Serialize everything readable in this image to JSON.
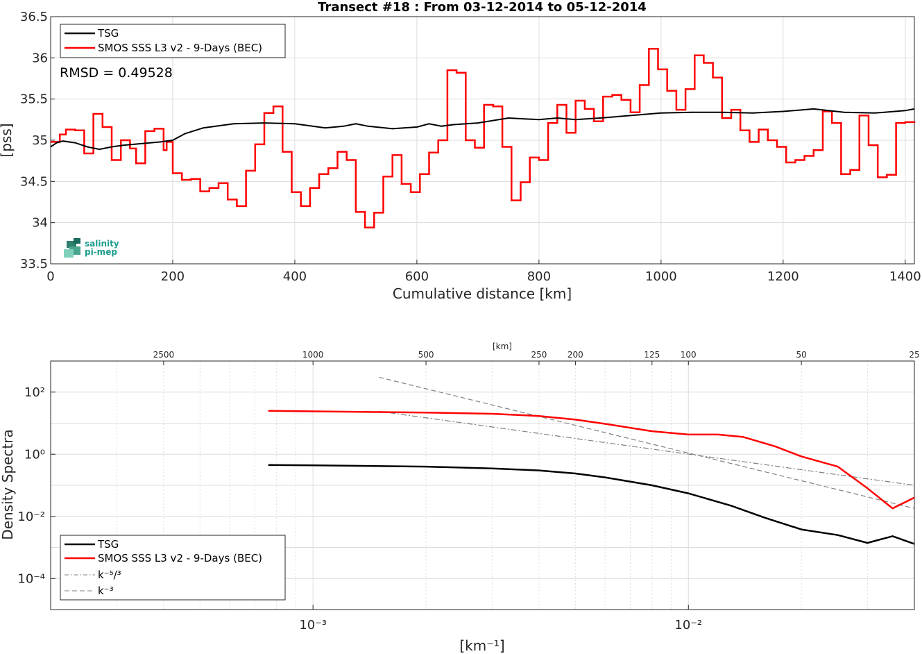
{
  "chart_data": [
    {
      "type": "line",
      "title": "Transect #18 : From 03-12-2014 to 05-12-2014",
      "xlabel": "Cumulative distance [km]",
      "ylabel": "[pss]",
      "xlim": [
        0,
        1415
      ],
      "ylim": [
        33.5,
        36.5
      ],
      "x_ticks": [
        "0",
        "200",
        "400",
        "600",
        "800",
        "1000",
        "1200",
        "1400"
      ],
      "y_ticks": [
        "33.5",
        "34",
        "34.5",
        "35",
        "35.5",
        "36",
        "36.5"
      ],
      "grid": true,
      "legend_position": "top-left",
      "annotation": "RMSD = 0.49528",
      "logo_text": [
        "salinity",
        "pi-mep"
      ],
      "series": [
        {
          "name": "TSG",
          "color": "#000000",
          "x": [
            0,
            10,
            20,
            40,
            60,
            80,
            100,
            120,
            150,
            180,
            200,
            220,
            250,
            300,
            350,
            400,
            450,
            480,
            500,
            520,
            560,
            600,
            620,
            640,
            660,
            700,
            750,
            800,
            830,
            860,
            900,
            950,
            1000,
            1050,
            1100,
            1150,
            1200,
            1250,
            1300,
            1350,
            1400,
            1415
          ],
          "values": [
            34.92,
            34.97,
            34.99,
            34.97,
            34.92,
            34.89,
            34.92,
            34.94,
            34.96,
            34.98,
            35.0,
            35.08,
            35.15,
            35.2,
            35.21,
            35.2,
            35.15,
            35.17,
            35.2,
            35.17,
            35.14,
            35.16,
            35.2,
            35.17,
            35.19,
            35.21,
            35.27,
            35.25,
            35.27,
            35.25,
            35.27,
            35.3,
            35.33,
            35.34,
            35.34,
            35.33,
            35.35,
            35.38,
            35.34,
            35.33,
            35.36,
            35.38
          ]
        },
        {
          "name": "SMOS SSS L3 v2 - 9-Days (BEC)",
          "color": "#ff0000",
          "x": [
            0,
            15,
            25,
            40,
            55,
            70,
            85,
            100,
            115,
            130,
            140,
            155,
            170,
            185,
            190,
            200,
            215,
            230,
            245,
            260,
            275,
            290,
            305,
            320,
            335,
            350,
            365,
            380,
            395,
            410,
            425,
            440,
            455,
            470,
            485,
            500,
            515,
            530,
            545,
            560,
            575,
            590,
            605,
            620,
            635,
            650,
            665,
            680,
            695,
            710,
            725,
            740,
            755,
            770,
            785,
            800,
            815,
            830,
            845,
            860,
            875,
            890,
            905,
            920,
            935,
            950,
            965,
            980,
            995,
            1010,
            1025,
            1040,
            1055,
            1070,
            1085,
            1100,
            1115,
            1130,
            1145,
            1160,
            1175,
            1190,
            1205,
            1220,
            1235,
            1250,
            1265,
            1280,
            1295,
            1310,
            1325,
            1340,
            1355,
            1370,
            1385,
            1400,
            1415
          ],
          "values": [
            34.98,
            35.07,
            35.13,
            35.12,
            34.84,
            35.32,
            35.16,
            34.76,
            35.0,
            34.9,
            34.72,
            35.11,
            35.14,
            34.88,
            34.98,
            34.6,
            34.52,
            34.53,
            34.38,
            34.42,
            34.48,
            34.28,
            34.2,
            34.63,
            34.95,
            35.33,
            35.41,
            34.86,
            34.37,
            34.2,
            34.42,
            34.59,
            34.66,
            34.86,
            34.76,
            34.13,
            33.94,
            34.12,
            34.56,
            34.82,
            34.47,
            34.37,
            34.59,
            34.85,
            35.0,
            35.85,
            35.82,
            35.0,
            34.91,
            35.43,
            35.41,
            34.92,
            34.27,
            34.49,
            34.79,
            34.76,
            35.21,
            35.43,
            35.09,
            35.48,
            35.38,
            35.23,
            35.53,
            35.55,
            35.49,
            35.34,
            35.67,
            36.11,
            35.86,
            35.6,
            35.37,
            35.62,
            36.03,
            35.94,
            35.76,
            35.27,
            35.37,
            35.12,
            34.98,
            35.13,
            35.0,
            34.92,
            34.73,
            34.76,
            34.81,
            34.88,
            35.35,
            35.21,
            34.59,
            34.64,
            35.3,
            34.94,
            34.55,
            34.58,
            35.21,
            35.22,
            35.21
          ]
        }
      ]
    },
    {
      "type": "line",
      "title": "",
      "xlabel": "[km⁻¹]",
      "ylabel": "Density Spectra",
      "x_scale": "log",
      "y_scale": "log",
      "xlim": [
        0.0002,
        0.04
      ],
      "ylim": [
        1e-05,
        1000
      ],
      "x_ticks": [
        "10⁻³",
        "10⁻²"
      ],
      "y_ticks": [
        "10²",
        "10⁰",
        "10⁻²",
        "10⁻⁴"
      ],
      "top_axis_label": "[km]",
      "top_ticks": [
        "2500",
        "1000",
        "500",
        "250",
        "200",
        "125",
        "100",
        "50",
        "25"
      ],
      "top_tick_values_km": [
        2500,
        1000,
        500,
        250,
        200,
        125,
        100,
        50,
        25
      ],
      "grid": true,
      "legend_position": "bottom-left",
      "series": [
        {
          "name": "TSG",
          "color": "#000000",
          "x": [
            0.00076,
            0.001,
            0.002,
            0.003,
            0.004,
            0.005,
            0.006,
            0.008,
            0.01,
            0.013,
            0.016,
            0.02,
            0.025,
            0.03,
            0.035,
            0.04
          ],
          "values": [
            0.45,
            0.44,
            0.4,
            0.35,
            0.3,
            0.24,
            0.18,
            0.1,
            0.055,
            0.022,
            0.009,
            0.0038,
            0.0025,
            0.0014,
            0.0023,
            0.0013
          ]
        },
        {
          "name": "SMOS SSS L3 v2 - 9-Days (BEC)",
          "color": "#ff0000",
          "x": [
            0.00076,
            0.001,
            0.002,
            0.003,
            0.004,
            0.005,
            0.006,
            0.008,
            0.01,
            0.012,
            0.014,
            0.017,
            0.02,
            0.025,
            0.03,
            0.035,
            0.04
          ],
          "values": [
            25,
            24,
            22,
            20,
            17,
            13,
            9.5,
            5.5,
            4.3,
            4.3,
            3.6,
            1.8,
            0.85,
            0.4,
            0.08,
            0.018,
            0.04
          ]
        },
        {
          "name": "k⁻⁵/³",
          "color": "#808080",
          "style": "dashdot",
          "x": [
            0.0015,
            0.04
          ],
          "values": [
            24,
            0.1
          ]
        },
        {
          "name": "k⁻³",
          "color": "#808080",
          "style": "dashed",
          "x": [
            0.0015,
            0.04
          ],
          "values": [
            300,
            0.018
          ]
        }
      ]
    }
  ]
}
